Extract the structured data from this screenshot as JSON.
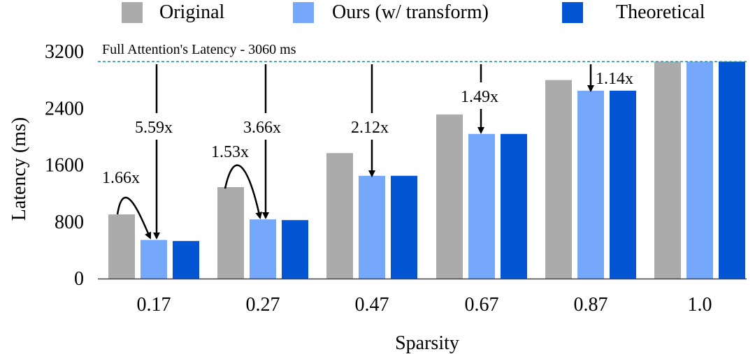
{
  "chart_data": {
    "type": "bar",
    "xlabel": "Sparsity",
    "ylabel": "Latency (ms)",
    "categories": [
      "0.17",
      "0.27",
      "0.47",
      "0.67",
      "0.87",
      "1.0"
    ],
    "yticks": [
      "0",
      "800",
      "1600",
      "2400",
      "3200"
    ],
    "ylim": [
      0,
      3200
    ],
    "legend_position": "top",
    "series": [
      {
        "name": "Original",
        "color": "#ababab",
        "values": [
          905,
          1290,
          1770,
          2315,
          2800,
          3060
        ]
      },
      {
        "name": "Ours (w/ transform)",
        "color": "#75a8fb",
        "values": [
          545,
          835,
          1450,
          2040,
          2650,
          3060
        ]
      },
      {
        "name": "Theoretical",
        "color": "#0455d4",
        "values": [
          530,
          825,
          1450,
          2040,
          2650,
          3060
        ]
      }
    ],
    "reference_line": {
      "value": 3060,
      "label": "Full Attention's Latency - 3060 ms",
      "color": "#2a8a9e"
    },
    "annotations": [
      {
        "category": "0.17",
        "kind": "curve",
        "label": "1.66x"
      },
      {
        "category": "0.17",
        "kind": "straight",
        "label": "5.59x"
      },
      {
        "category": "0.27",
        "kind": "curve",
        "label": "1.53x"
      },
      {
        "category": "0.27",
        "kind": "straight",
        "label": "3.66x"
      },
      {
        "category": "0.47",
        "kind": "straight",
        "label": "2.12x"
      },
      {
        "category": "0.67",
        "kind": "straight",
        "label": "1.49x"
      },
      {
        "category": "0.87",
        "kind": "straight",
        "label": "1.14x"
      }
    ]
  }
}
